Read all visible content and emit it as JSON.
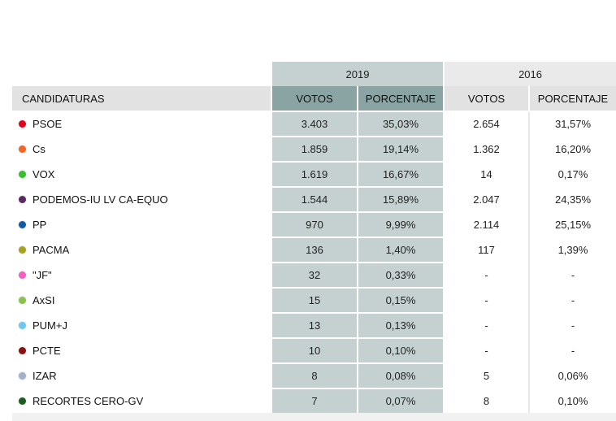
{
  "years": {
    "current": "2019",
    "previous": "2016"
  },
  "headers": {
    "name": "CANDIDATURAS",
    "votes19": "VOTOS",
    "pct19": "PORCENTAJE",
    "votes16": "VOTOS",
    "pct16": "PORCENTAJE"
  },
  "rows": [
    {
      "party": "PSOE",
      "color": "#e3001b",
      "v19": "3.403",
      "p19": "35,03%",
      "v16": "2.654",
      "p16": "31,57%"
    },
    {
      "party": "Cs",
      "color": "#f26522",
      "v19": "1.859",
      "p19": "19,14%",
      "v16": "1.362",
      "p16": "16,20%"
    },
    {
      "party": "VOX",
      "color": "#36c12c",
      "v19": "1.619",
      "p19": "16,67%",
      "v16": "14",
      "p16": "0,17%"
    },
    {
      "party": "PODEMOS-IU LV CA-EQUO",
      "color": "#5a2a61",
      "v19": "1.544",
      "p19": "15,89%",
      "v16": "2.047",
      "p16": "24,35%"
    },
    {
      "party": "PP",
      "color": "#0d5aa7",
      "v19": "970",
      "p19": "9,99%",
      "v16": "2.114",
      "p16": "25,15%"
    },
    {
      "party": "PACMA",
      "color": "#a8a21a",
      "v19": "136",
      "p19": "1,40%",
      "v16": "117",
      "p16": "1,39%"
    },
    {
      "party": "\"JF\"",
      "color": "#f25ec2",
      "v19": "32",
      "p19": "0,33%",
      "v16": "-",
      "p16": "-"
    },
    {
      "party": "AxSI",
      "color": "#8bc34a",
      "v19": "15",
      "p19": "0,15%",
      "v16": "-",
      "p16": "-"
    },
    {
      "party": "PUM+J",
      "color": "#6cc8ec",
      "v19": "13",
      "p19": "0,13%",
      "v16": "-",
      "p16": "-"
    },
    {
      "party": "PCTE",
      "color": "#8b1010",
      "v19": "10",
      "p19": "0,10%",
      "v16": "-",
      "p16": "-"
    },
    {
      "party": "IZAR",
      "color": "#a4afc8",
      "v19": "8",
      "p19": "0,08%",
      "v16": "5",
      "p16": "0,06%"
    },
    {
      "party": "RECORTES CERO-GV",
      "color": "#1b5e20",
      "v19": "7",
      "p19": "0,07%",
      "v16": "8",
      "p16": "0,10%"
    }
  ]
}
